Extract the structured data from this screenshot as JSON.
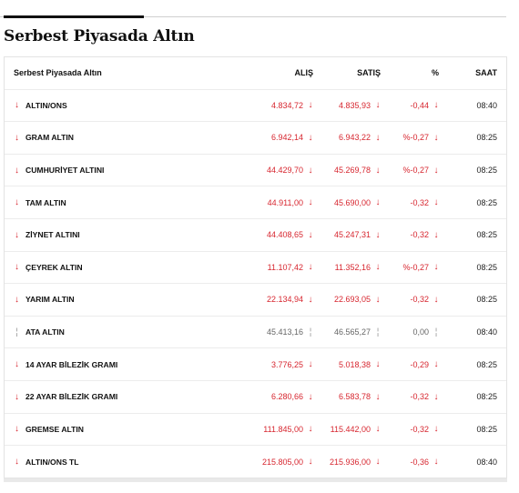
{
  "title": "Serbest Piyasada Altın",
  "colors": {
    "down": "#d7262f",
    "neutral": "#999999",
    "text": "#111111"
  },
  "icons": {
    "down": "arrow-down-icon",
    "neutral": "dash-icon"
  },
  "header": {
    "name": "Serbest Piyasada Altın",
    "alis": "ALIŞ",
    "satis": "SATIŞ",
    "pct": "%",
    "saat": "SAAT"
  },
  "rows": [
    {
      "name": "ALTIN/ONS",
      "alis": "4.834,72",
      "satis": "4.835,93",
      "pct": "-0,44",
      "saat": "08:40",
      "trend": "down"
    },
    {
      "name": "GRAM ALTIN",
      "alis": "6.942,14",
      "satis": "6.943,22",
      "pct": "%-0,27",
      "saat": "08:25",
      "trend": "down"
    },
    {
      "name": "CUMHURİYET ALTINI",
      "alis": "44.429,70",
      "satis": "45.269,78",
      "pct": "%-0,27",
      "saat": "08:25",
      "trend": "down"
    },
    {
      "name": "TAM ALTIN",
      "alis": "44.911,00",
      "satis": "45.690,00",
      "pct": "-0,32",
      "saat": "08:25",
      "trend": "down"
    },
    {
      "name": "ZİYNET ALTINI",
      "alis": "44.408,65",
      "satis": "45.247,31",
      "pct": "-0,32",
      "saat": "08:25",
      "trend": "down"
    },
    {
      "name": "ÇEYREK ALTIN",
      "alis": "11.107,42",
      "satis": "11.352,16",
      "pct": "%-0,27",
      "saat": "08:25",
      "trend": "down"
    },
    {
      "name": "YARIM ALTIN",
      "alis": "22.134,94",
      "satis": "22.693,05",
      "pct": "-0,32",
      "saat": "08:25",
      "trend": "down"
    },
    {
      "name": "ATA ALTIN",
      "alis": "45.413,16",
      "satis": "46.565,27",
      "pct": "0,00",
      "saat": "08:40",
      "trend": "neutral"
    },
    {
      "name": "14 AYAR BİLEZİK GRAMI",
      "alis": "3.776,25",
      "satis": "5.018,38",
      "pct": "-0,29",
      "saat": "08:25",
      "trend": "down"
    },
    {
      "name": "22 AYAR BİLEZİK GRAMI",
      "alis": "6.280,66",
      "satis": "6.583,78",
      "pct": "-0,32",
      "saat": "08:25",
      "trend": "down"
    },
    {
      "name": "GREMSE ALTIN",
      "alis": "111.845,00",
      "satis": "115.442,00",
      "pct": "-0,32",
      "saat": "08:25",
      "trend": "down"
    },
    {
      "name": "ALTIN/ONS TL",
      "alis": "215.805,00",
      "satis": "215.936,00",
      "pct": "-0,36",
      "saat": "08:40",
      "trend": "down"
    }
  ]
}
